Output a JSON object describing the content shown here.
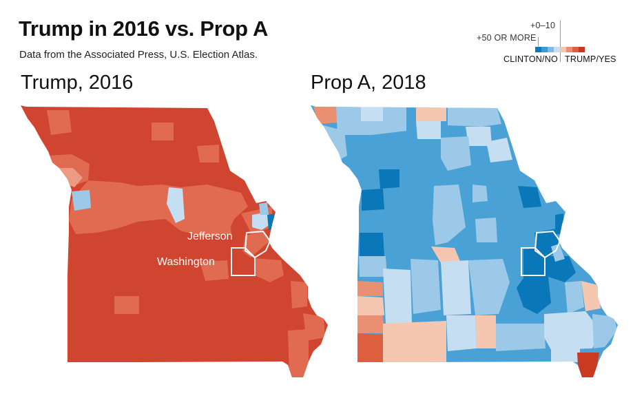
{
  "title": "Trump in 2016 vs. Prop A",
  "subtitle": "Data from the Associated Press, U.S. Election Atlas.",
  "legend": {
    "small_margin": "+0–10",
    "large_margin": "+50 OR MORE",
    "left_label": "CLINTON/NO",
    "right_label": "TRUMP/YES",
    "scale_colors": [
      "#0a77b8",
      "#3b9ad2",
      "#7fbbe2",
      "#c6def1",
      "#f5c6b0",
      "#ea8f72",
      "#de5e40",
      "#c83b22"
    ]
  },
  "maps": [
    {
      "heading": "Trump, 2016",
      "highlighted_counties": [
        "Jefferson",
        "Washington"
      ],
      "base_color": "#cf4530"
    },
    {
      "heading": "Prop A, 2018",
      "base_color": "#4aa1d6"
    }
  ],
  "colors": {
    "trump_strong": "#cf4530",
    "trump_medium": "#e06b50",
    "clinton_strong": "#0a77b8",
    "no_medium": "#4aa1d6",
    "no_light": "#9cc9e7"
  }
}
